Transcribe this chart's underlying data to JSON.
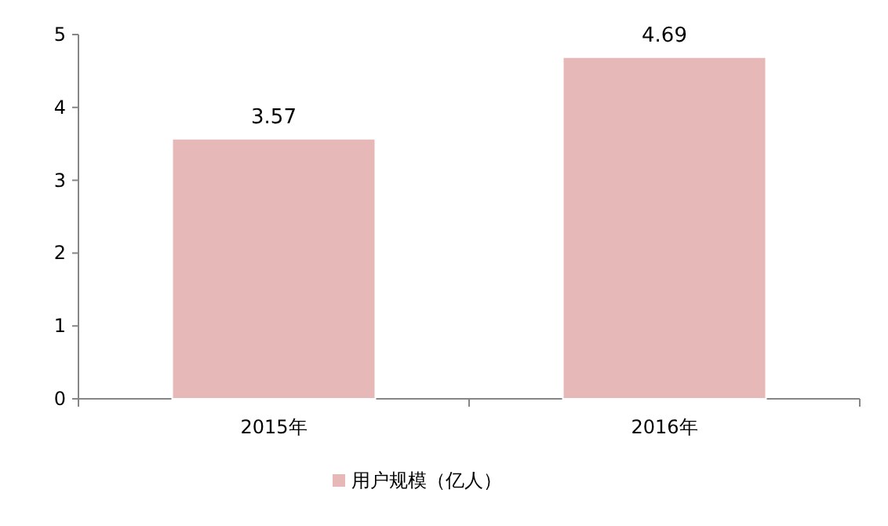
{
  "chart_data": {
    "type": "bar",
    "categories": [
      "2015年",
      "2016年"
    ],
    "series": [
      {
        "name": "用户规模（亿人）",
        "color": "#e6b8b7",
        "values": [
          3.57,
          4.69
        ]
      }
    ],
    "ylim": [
      0,
      5
    ],
    "yticks": [
      0,
      1,
      2,
      3,
      4,
      5
    ],
    "grid": false,
    "legend": "bottom",
    "data_labels": true
  }
}
